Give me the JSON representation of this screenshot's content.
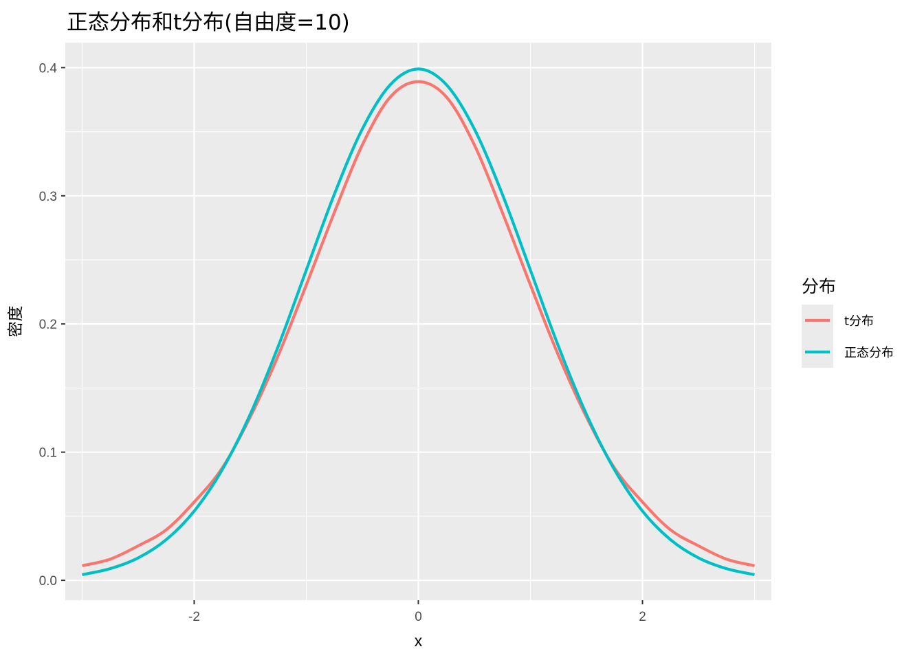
{
  "chart_data": {
    "type": "line",
    "title": "正态分布和t分布(自由度=10)",
    "xlabel": "x",
    "ylabel": "密度",
    "xlim": [
      -3.15,
      3.15
    ],
    "ylim": [
      -0.0155,
      0.4195
    ],
    "x_ticks": [
      -2,
      0,
      2
    ],
    "x_tick_labels": [
      "-2",
      "0",
      "2"
    ],
    "y_ticks": [
      0.0,
      0.1,
      0.2,
      0.3,
      0.4
    ],
    "y_tick_labels": [
      "0.0",
      "0.1",
      "0.2",
      "0.3",
      "0.4"
    ],
    "grid": true,
    "legend": {
      "title": "分布",
      "position": "right"
    },
    "x": [
      -3.0,
      -2.75,
      -2.5,
      -2.25,
      -2.0,
      -1.75,
      -1.5,
      -1.25,
      -1.0,
      -0.75,
      -0.5,
      -0.25,
      0.0,
      0.25,
      0.5,
      0.75,
      1.0,
      1.25,
      1.5,
      1.75,
      2.0,
      2.25,
      2.5,
      2.75,
      3.0
    ],
    "series": [
      {
        "name": "t分布",
        "color": "#F8766D",
        "values": [
          0.0114,
          0.0165,
          0.0269,
          0.0394,
          0.0611,
          0.0876,
          0.1274,
          0.1755,
          0.2304,
          0.2869,
          0.3397,
          0.3771,
          0.3891,
          0.3771,
          0.3397,
          0.2869,
          0.2304,
          0.1755,
          0.1274,
          0.0876,
          0.0611,
          0.0394,
          0.0269,
          0.0165,
          0.0114
        ]
      },
      {
        "name": "正态分布",
        "color": "#00BFC4",
        "values": [
          0.0044,
          0.0091,
          0.0175,
          0.0317,
          0.054,
          0.0863,
          0.1295,
          0.1826,
          0.242,
          0.3011,
          0.3521,
          0.3867,
          0.3989,
          0.3867,
          0.3521,
          0.3011,
          0.242,
          0.1826,
          0.1295,
          0.0863,
          0.054,
          0.0317,
          0.0175,
          0.0091,
          0.0044
        ]
      }
    ]
  }
}
